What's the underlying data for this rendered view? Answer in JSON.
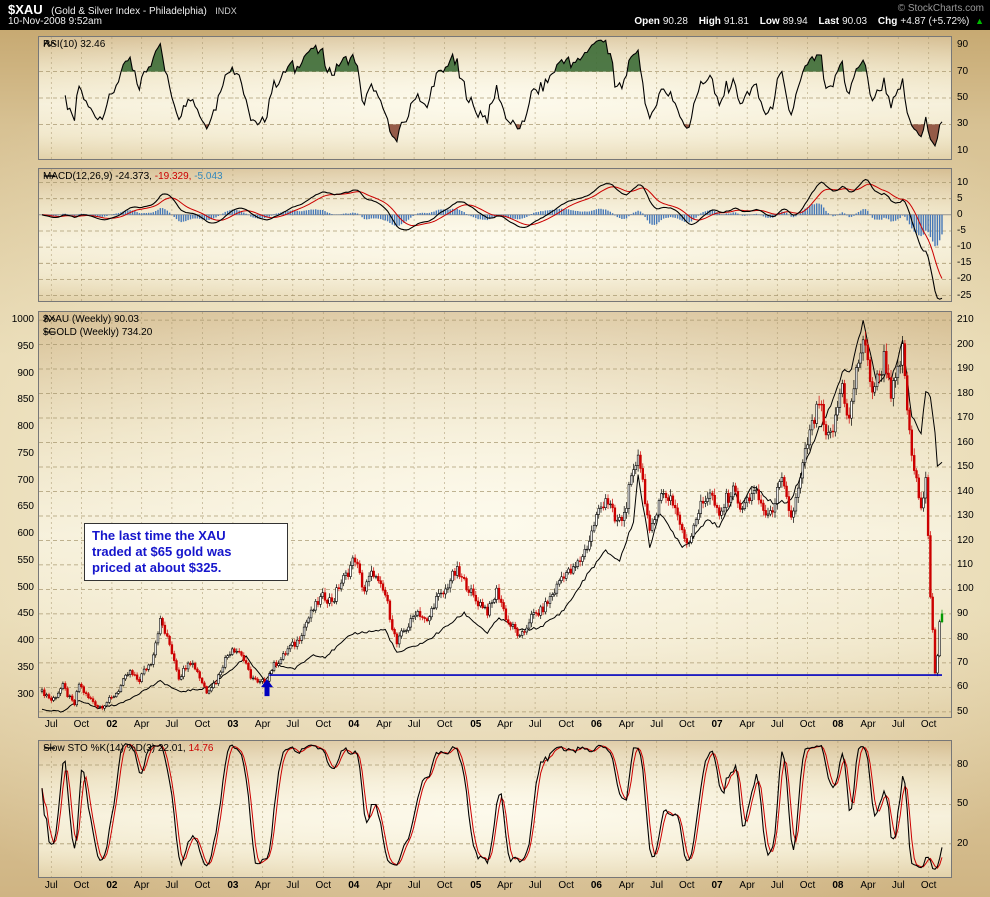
{
  "header": {
    "symbol": "$XAU",
    "name": "(Gold & Silver Index - Philadelphia)",
    "type": "INDX",
    "datetime": "10-Nov-2008 9:52am",
    "copyright": "© StockCharts.com",
    "quote": {
      "open_label": "Open",
      "open": "90.28",
      "high_label": "High",
      "high": "91.81",
      "low_label": "Low",
      "low": "89.94",
      "last_label": "Last",
      "last": "90.03",
      "chg_label": "Chg",
      "chg": "+4.87 (+5.72%)",
      "arrow": "▲",
      "direction": "up"
    }
  },
  "colors": {
    "candle_up": "#000000",
    "candle_down": "#cc0000",
    "candle_last": "#009900",
    "gold_line": "#000000",
    "rsi_line": "#000000",
    "overbought_fill": "#3c6b36",
    "oversold_fill": "#8a4a38",
    "macd_line": "#000000",
    "macd_signal": "#cc0000",
    "macd_hist": "#4779b8",
    "sto_k": "#000000",
    "sto_d": "#cc0000",
    "annotation_text": "#1515cc",
    "support_line": "#0000bf",
    "grid": "#a39269",
    "panel_border": "#777777",
    "up_arrow_green": "#00bb00"
  },
  "x_axis": {
    "start": "2001-06-04",
    "end": "2008-11-10",
    "ticks": [
      {
        "label": "Jul",
        "date": "2001-07-02",
        "year": false
      },
      {
        "label": "Oct",
        "date": "2001-10-01",
        "year": false
      },
      {
        "label": "02",
        "date": "2002-01-01",
        "year": true
      },
      {
        "label": "Apr",
        "date": "2002-04-01",
        "year": false
      },
      {
        "label": "Jul",
        "date": "2002-07-01",
        "year": false
      },
      {
        "label": "Oct",
        "date": "2002-10-01",
        "year": false
      },
      {
        "label": "03",
        "date": "2003-01-01",
        "year": true
      },
      {
        "label": "Apr",
        "date": "2003-04-01",
        "year": false
      },
      {
        "label": "Jul",
        "date": "2003-07-01",
        "year": false
      },
      {
        "label": "Oct",
        "date": "2003-10-01",
        "year": false
      },
      {
        "label": "04",
        "date": "2004-01-01",
        "year": true
      },
      {
        "label": "Apr",
        "date": "2004-04-01",
        "year": false
      },
      {
        "label": "Jul",
        "date": "2004-07-01",
        "year": false
      },
      {
        "label": "Oct",
        "date": "2004-10-01",
        "year": false
      },
      {
        "label": "05",
        "date": "2005-01-03",
        "year": true
      },
      {
        "label": "Apr",
        "date": "2005-04-01",
        "year": false
      },
      {
        "label": "Jul",
        "date": "2005-07-01",
        "year": false
      },
      {
        "label": "Oct",
        "date": "2005-10-03",
        "year": false
      },
      {
        "label": "06",
        "date": "2006-01-02",
        "year": true
      },
      {
        "label": "Apr",
        "date": "2006-04-03",
        "year": false
      },
      {
        "label": "Jul",
        "date": "2006-07-03",
        "year": false
      },
      {
        "label": "Oct",
        "date": "2006-10-02",
        "year": false
      },
      {
        "label": "07",
        "date": "2007-01-01",
        "year": true
      },
      {
        "label": "Apr",
        "date": "2007-04-02",
        "year": false
      },
      {
        "label": "Jul",
        "date": "2007-07-02",
        "year": false
      },
      {
        "label": "Oct",
        "date": "2007-10-01",
        "year": false
      },
      {
        "label": "08",
        "date": "2008-01-01",
        "year": true
      },
      {
        "label": "Apr",
        "date": "2008-04-01",
        "year": false
      },
      {
        "label": "Jul",
        "date": "2008-07-01",
        "year": false
      },
      {
        "label": "Oct",
        "date": "2008-10-01",
        "year": false
      }
    ]
  },
  "chart_data": [
    {
      "type": "line",
      "panel": "rsi",
      "label": "RSI(10) 32.46",
      "indicator": "RSI",
      "period": 10,
      "last_value": 32.46,
      "ylim": [
        0,
        100
      ],
      "yticks": [
        90,
        70,
        50,
        30,
        10
      ],
      "hlines": [
        70,
        50,
        30
      ],
      "overbought": 70,
      "oversold": 30
    },
    {
      "type": "line+histogram",
      "panel": "macd",
      "label": "MACD(12,26,9)",
      "macd_text": "-24.373,",
      "signal_text": "-19.329,",
      "hist_text": "-5.043",
      "values": [
        -24.373,
        -19.329,
        -5.043
      ],
      "params": [
        12,
        26,
        9
      ],
      "ylim": [
        -27,
        14.5
      ],
      "yticks": [
        10,
        5,
        0,
        -5,
        -10,
        -15,
        -20,
        -25
      ]
    },
    {
      "type": "candlestick+line",
      "panel": "price",
      "series": [
        {
          "name": "$XAU Weekly",
          "label": "$XAU (Weekly) 90.03",
          "style": "candlestick",
          "axis": "right",
          "last": 90.03,
          "keyframes": [
            [
              "2001-06-04",
              58
            ],
            [
              "2001-07-02",
              55
            ],
            [
              "2001-08-06",
              60
            ],
            [
              "2001-09-10",
              53
            ],
            [
              "2001-09-24",
              61
            ],
            [
              "2001-10-22",
              56
            ],
            [
              "2001-11-19",
              52
            ],
            [
              "2001-12-31",
              55
            ],
            [
              "2002-01-28",
              61
            ],
            [
              "2002-02-25",
              66
            ],
            [
              "2002-03-25",
              63
            ],
            [
              "2002-04-29",
              71
            ],
            [
              "2002-05-28",
              87
            ],
            [
              "2002-06-24",
              78
            ],
            [
              "2002-07-22",
              64
            ],
            [
              "2002-08-19",
              71
            ],
            [
              "2002-09-16",
              67
            ],
            [
              "2002-10-14",
              58
            ],
            [
              "2002-11-11",
              63
            ],
            [
              "2002-12-30",
              77
            ],
            [
              "2003-01-27",
              73
            ],
            [
              "2003-02-24",
              65
            ],
            [
              "2003-03-17",
              61
            ],
            [
              "2003-04-14",
              64
            ],
            [
              "2003-05-12",
              70
            ],
            [
              "2003-06-09",
              74
            ],
            [
              "2003-07-07",
              78
            ],
            [
              "2003-08-04",
              84
            ],
            [
              "2003-09-02",
              93
            ],
            [
              "2003-10-06",
              97
            ],
            [
              "2003-11-03",
              96
            ],
            [
              "2003-12-01",
              105
            ],
            [
              "2004-01-05",
              112
            ],
            [
              "2004-02-02",
              100
            ],
            [
              "2004-03-01",
              107
            ],
            [
              "2004-04-05",
              97
            ],
            [
              "2004-05-10",
              78
            ],
            [
              "2004-06-07",
              84
            ],
            [
              "2004-07-06",
              91
            ],
            [
              "2004-08-09",
              87
            ],
            [
              "2004-09-07",
              96
            ],
            [
              "2004-10-04",
              100
            ],
            [
              "2004-11-08",
              108
            ],
            [
              "2004-12-06",
              101
            ],
            [
              "2005-01-10",
              95
            ],
            [
              "2005-02-07",
              91
            ],
            [
              "2005-03-07",
              99
            ],
            [
              "2005-04-11",
              87
            ],
            [
              "2005-05-16",
              80
            ],
            [
              "2005-06-13",
              87
            ],
            [
              "2005-07-11",
              91
            ],
            [
              "2005-08-08",
              94
            ],
            [
              "2005-09-12",
              104
            ],
            [
              "2005-10-10",
              107
            ],
            [
              "2005-11-14",
              111
            ],
            [
              "2005-12-12",
              121
            ],
            [
              "2006-01-30",
              139
            ],
            [
              "2006-02-27",
              127
            ],
            [
              "2006-03-27",
              131
            ],
            [
              "2006-04-24",
              147
            ],
            [
              "2006-05-08",
              158
            ],
            [
              "2006-06-12",
              122
            ],
            [
              "2006-07-10",
              137
            ],
            [
              "2006-08-14",
              139
            ],
            [
              "2006-09-18",
              123
            ],
            [
              "2006-10-09",
              120
            ],
            [
              "2006-11-13",
              135
            ],
            [
              "2006-12-11",
              139
            ],
            [
              "2007-01-08",
              130
            ],
            [
              "2007-02-26",
              143
            ],
            [
              "2007-03-12",
              130
            ],
            [
              "2007-04-16",
              141
            ],
            [
              "2007-05-14",
              134
            ],
            [
              "2007-06-11",
              130
            ],
            [
              "2007-07-16",
              145
            ],
            [
              "2007-08-13",
              128
            ],
            [
              "2007-09-17",
              150
            ],
            [
              "2007-10-15",
              167
            ],
            [
              "2007-11-05",
              177
            ],
            [
              "2007-11-26",
              160
            ],
            [
              "2007-12-24",
              169
            ],
            [
              "2008-01-14",
              183
            ],
            [
              "2008-02-04",
              170
            ],
            [
              "2008-03-17",
              204
            ],
            [
              "2008-04-14",
              180
            ],
            [
              "2008-05-19",
              195
            ],
            [
              "2008-06-09",
              180
            ],
            [
              "2008-06-30",
              189
            ],
            [
              "2008-07-14",
              196
            ],
            [
              "2008-08-04",
              163
            ],
            [
              "2008-08-18",
              150
            ],
            [
              "2008-09-08",
              130
            ],
            [
              "2008-09-22",
              149
            ],
            [
              "2008-10-06",
              99
            ],
            [
              "2008-10-20",
              66
            ],
            [
              "2008-10-27",
              71
            ],
            [
              "2008-11-03",
              86
            ],
            [
              "2008-11-10",
              90.03
            ]
          ]
        },
        {
          "name": "$GOLD Weekly",
          "label": "$GOLD (Weekly) 734.20",
          "style": "line",
          "axis": "left",
          "last": 734.2,
          "keyframes": [
            [
              "2001-06-04",
              272
            ],
            [
              "2001-08-06",
              267
            ],
            [
              "2001-09-24",
              290
            ],
            [
              "2001-11-19",
              274
            ],
            [
              "2002-01-28",
              283
            ],
            [
              "2002-05-28",
              325
            ],
            [
              "2002-07-22",
              305
            ],
            [
              "2002-10-14",
              312
            ],
            [
              "2002-12-30",
              348
            ],
            [
              "2003-02-10",
              370
            ],
            [
              "2003-04-07",
              325
            ],
            [
              "2003-05-12",
              355
            ],
            [
              "2003-07-07",
              348
            ],
            [
              "2003-09-02",
              375
            ],
            [
              "2003-10-06",
              370
            ],
            [
              "2003-12-29",
              414
            ],
            [
              "2004-04-05",
              421
            ],
            [
              "2004-05-10",
              377
            ],
            [
              "2004-08-09",
              400
            ],
            [
              "2004-11-29",
              452
            ],
            [
              "2005-02-07",
              415
            ],
            [
              "2005-03-14",
              443
            ],
            [
              "2005-05-16",
              420
            ],
            [
              "2005-07-11",
              424
            ],
            [
              "2005-09-12",
              450
            ],
            [
              "2005-10-10",
              470
            ],
            [
              "2005-12-12",
              530
            ],
            [
              "2006-01-30",
              568
            ],
            [
              "2006-03-13",
              550
            ],
            [
              "2006-04-24",
              625
            ],
            [
              "2006-05-08",
              710
            ],
            [
              "2006-06-12",
              575
            ],
            [
              "2006-07-10",
              640
            ],
            [
              "2006-09-18",
              578
            ],
            [
              "2006-10-02",
              580
            ],
            [
              "2006-12-04",
              630
            ],
            [
              "2007-01-08",
              610
            ],
            [
              "2007-02-26",
              680
            ],
            [
              "2007-03-12",
              650
            ],
            [
              "2007-04-16",
              690
            ],
            [
              "2007-06-25",
              655
            ],
            [
              "2007-08-13",
              665
            ],
            [
              "2007-09-17",
              720
            ],
            [
              "2007-10-29",
              790
            ],
            [
              "2007-11-26",
              820
            ],
            [
              "2008-01-14",
              900
            ],
            [
              "2008-02-11",
              910
            ],
            [
              "2008-03-17",
              1000
            ],
            [
              "2008-04-28",
              880
            ],
            [
              "2008-05-26",
              900
            ],
            [
              "2008-06-09",
              890
            ],
            [
              "2008-07-14",
              960
            ],
            [
              "2008-08-11",
              820
            ],
            [
              "2008-09-08",
              790
            ],
            [
              "2008-09-22",
              870
            ],
            [
              "2008-10-06",
              860
            ],
            [
              "2008-10-20",
              790
            ],
            [
              "2008-10-27",
              730
            ],
            [
              "2008-11-10",
              734.2
            ]
          ]
        }
      ],
      "right_axis": {
        "range": [
          47.5,
          213.7
        ],
        "ticks": [
          210,
          200,
          190,
          180,
          170,
          160,
          150,
          140,
          130,
          120,
          110,
          100,
          90,
          80,
          70,
          60,
          50
        ]
      },
      "left_axis": {
        "range": [
          256,
          1017
        ],
        "ticks": [
          1000,
          950,
          900,
          850,
          800,
          750,
          700,
          650,
          600,
          550,
          500,
          450,
          400,
          350,
          300
        ]
      },
      "annotation": {
        "lines": [
          "The last time the XAU",
          "traded at $65 gold was",
          "priced at about $325."
        ]
      },
      "support_line": {
        "value": 65,
        "from": "2003-04-21"
      },
      "arrow": {
        "date": "2003-04-14",
        "points_to_value": 65
      }
    },
    {
      "type": "line",
      "panel": "stochastic",
      "label": "Slow STO %K(14) %D(3)",
      "k_text": "22.01,",
      "d_text": "14.76",
      "values": [
        22.01,
        14.76
      ],
      "ylim": [
        0,
        100
      ],
      "yticks": [
        80,
        50,
        20
      ],
      "hlines": [
        80,
        50,
        20
      ]
    }
  ]
}
